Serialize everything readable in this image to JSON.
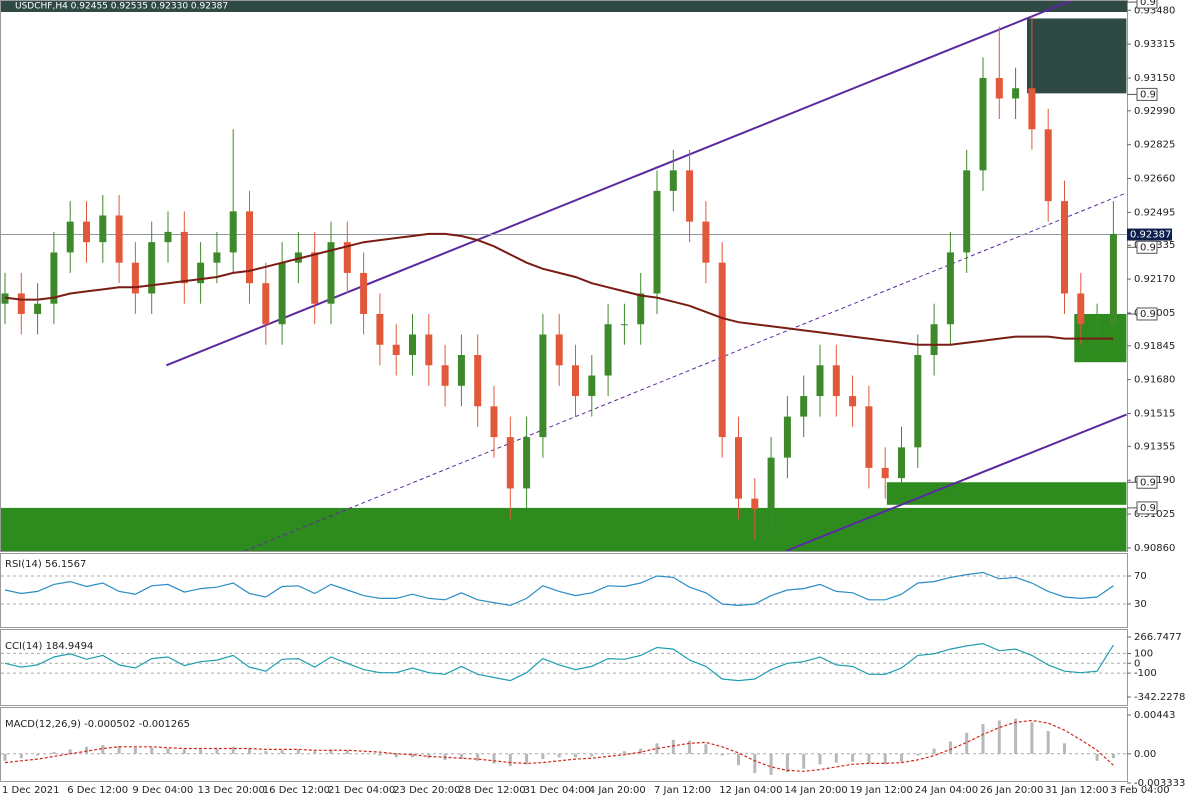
{
  "chart_data": [
    {
      "type": "candlestick",
      "title": "USDCHF,H4 0.92455 0.92535 0.92330 0.92387",
      "categories": [
        "1 Dec 2021",
        null,
        null,
        null,
        "6 Dec 12:00",
        null,
        null,
        null,
        "9 Dec 04:00",
        null,
        null,
        null,
        "13 Dec 20:00",
        null,
        null,
        null,
        "16 Dec 12:00",
        null,
        null,
        null,
        "21 Dec 04:00",
        null,
        null,
        null,
        "23 Dec 20:00",
        null,
        null,
        null,
        "28 Dec 12:00",
        null,
        null,
        null,
        "31 Dec 04:00",
        null,
        null,
        null,
        "4 Jan 20:00",
        null,
        null,
        null,
        "7 Jan 12:00",
        null,
        null,
        null,
        "12 Jan 04:00",
        null,
        null,
        null,
        "14 Jan 20:00",
        null,
        null,
        null,
        "19 Jan 12:00",
        null,
        null,
        null,
        "24 Jan 04:00",
        null,
        null,
        null,
        "26 Jan 20:00",
        null,
        null,
        null,
        "31 Jan 12:00",
        null,
        null,
        null,
        "3 Feb 04:00"
      ],
      "open": [
        0.9205,
        0.921,
        0.92,
        0.9205,
        0.923,
        0.9245,
        0.9235,
        0.9248,
        0.9225,
        0.921,
        0.9235,
        0.924,
        0.9215,
        0.9225,
        0.923,
        0.925,
        0.9215,
        0.9195,
        0.9225,
        0.923,
        0.9205,
        0.9235,
        0.922,
        0.92,
        0.9185,
        0.918,
        0.919,
        0.9175,
        0.9165,
        0.918,
        0.9155,
        0.914,
        0.9115,
        0.914,
        0.919,
        0.9175,
        0.916,
        0.917,
        0.9195,
        0.9195,
        0.921,
        0.926,
        0.927,
        0.9245,
        0.9225,
        0.914,
        0.911,
        0.9105,
        0.913,
        0.915,
        0.916,
        0.9175,
        0.916,
        0.9155,
        0.9125,
        0.912,
        0.9135,
        0.918,
        0.9195,
        0.923,
        0.927,
        0.9315,
        0.9305,
        0.931,
        0.929,
        0.9255,
        0.921,
        0.9195,
        0.9195
      ],
      "high": [
        0.922,
        0.922,
        0.9215,
        0.924,
        0.9255,
        0.9255,
        0.9258,
        0.9258,
        0.9235,
        0.9245,
        0.925,
        0.925,
        0.9235,
        0.924,
        0.929,
        0.926,
        0.9225,
        0.9235,
        0.924,
        0.924,
        0.9245,
        0.9245,
        0.923,
        0.921,
        0.9195,
        0.92,
        0.92,
        0.9185,
        0.919,
        0.919,
        0.9165,
        0.915,
        0.915,
        0.92,
        0.92,
        0.9185,
        0.918,
        0.9205,
        0.9205,
        0.922,
        0.927,
        0.928,
        0.928,
        0.9255,
        0.9235,
        0.915,
        0.912,
        0.914,
        0.916,
        0.917,
        0.9185,
        0.9185,
        0.917,
        0.9165,
        0.9135,
        0.9145,
        0.919,
        0.9205,
        0.924,
        0.928,
        0.9325,
        0.934,
        0.932,
        0.9345,
        0.93,
        0.9265,
        0.922,
        0.9205,
        0.9255
      ],
      "low": [
        0.9195,
        0.919,
        0.919,
        0.9195,
        0.922,
        0.9225,
        0.9225,
        0.9215,
        0.92,
        0.92,
        0.9225,
        0.9205,
        0.9205,
        0.9215,
        0.922,
        0.9205,
        0.9185,
        0.9185,
        0.9215,
        0.9195,
        0.9195,
        0.921,
        0.919,
        0.9175,
        0.917,
        0.917,
        0.9165,
        0.9155,
        0.9155,
        0.9145,
        0.913,
        0.91,
        0.9105,
        0.913,
        0.9165,
        0.915,
        0.915,
        0.916,
        0.9185,
        0.9185,
        0.92,
        0.925,
        0.9235,
        0.9215,
        0.913,
        0.91,
        0.909,
        0.9095,
        0.912,
        0.914,
        0.915,
        0.915,
        0.9145,
        0.9115,
        0.911,
        0.911,
        0.9125,
        0.917,
        0.9185,
        0.922,
        0.926,
        0.9295,
        0.9295,
        0.928,
        0.9245,
        0.92,
        0.9185,
        0.9185,
        0.9185
      ],
      "close": [
        0.921,
        0.92,
        0.9205,
        0.923,
        0.9245,
        0.9235,
        0.9248,
        0.9225,
        0.921,
        0.9235,
        0.924,
        0.9215,
        0.9225,
        0.923,
        0.925,
        0.9215,
        0.9195,
        0.9225,
        0.923,
        0.9205,
        0.9235,
        0.922,
        0.92,
        0.9185,
        0.918,
        0.919,
        0.9175,
        0.9165,
        0.918,
        0.9155,
        0.914,
        0.9115,
        0.914,
        0.919,
        0.9175,
        0.916,
        0.917,
        0.9195,
        0.9195,
        0.921,
        0.926,
        0.927,
        0.9245,
        0.9225,
        0.914,
        0.911,
        0.9105,
        0.913,
        0.915,
        0.916,
        0.9175,
        0.916,
        0.9155,
        0.9125,
        0.912,
        0.9135,
        0.918,
        0.9195,
        0.923,
        0.927,
        0.9315,
        0.9305,
        0.931,
        0.929,
        0.9255,
        0.921,
        0.9195,
        0.9195,
        0.9239
      ],
      "up_color": "#3e8a2a",
      "down_color": "#e2583a",
      "ma": {
        "color": "#7b1c14",
        "values": [
          0.9208,
          0.9207,
          0.9207,
          0.9208,
          0.921,
          0.9211,
          0.9212,
          0.9213,
          0.9213,
          0.9214,
          0.9215,
          0.9216,
          0.9217,
          0.9218,
          0.922,
          0.9221,
          0.9223,
          0.9225,
          0.9227,
          0.9229,
          0.9231,
          0.9233,
          0.9235,
          0.9236,
          0.9237,
          0.9238,
          0.9239,
          0.9239,
          0.9238,
          0.9236,
          0.9233,
          0.9229,
          0.9225,
          0.9222,
          0.922,
          0.9218,
          0.9215,
          0.9213,
          0.9211,
          0.9209,
          0.9208,
          0.9206,
          0.9204,
          0.9201,
          0.9198,
          0.9196,
          0.9195,
          0.9194,
          0.9193,
          0.9192,
          0.9191,
          0.919,
          0.9189,
          0.9188,
          0.9187,
          0.9186,
          0.9185,
          0.9185,
          0.9185,
          0.9186,
          0.9187,
          0.9188,
          0.9189,
          0.9189,
          0.9189,
          0.9188,
          0.9188,
          0.9188,
          0.9188
        ]
      },
      "ylim": [
        0.90845,
        0.9353
      ],
      "yticks": [
        {
          "value": 0.9086,
          "label": "0.90860"
        },
        0.91025,
        {
          "value": 0.9119,
          "label": "0.91190"
        },
        0.91355,
        0.91515,
        {
          "value": 0.9168,
          "label": "0.91680"
        },
        0.91845,
        0.92005,
        {
          "value": 0.9217,
          "label": "0.92170"
        },
        0.92335,
        0.92495,
        {
          "value": 0.9266,
          "label": "0.92660"
        },
        0.92825,
        {
          "value": 0.9299,
          "label": "0.92990"
        },
        {
          "value": 0.9315,
          "label": "0.93150"
        },
        0.93315,
        {
          "value": 0.9348,
          "label": "0.93480"
        }
      ],
      "current_price": 0.92387,
      "levels": [
        {
          "value": 0.9352,
          "label": "0.9"
        },
        {
          "value": 0.9307,
          "label": "0.9"
        },
        {
          "value": 0.92325,
          "label": "0.9"
        },
        {
          "value": 0.92,
          "label": "0.9"
        },
        {
          "value": 0.9118,
          "label": "0.9"
        },
        {
          "value": 0.91055,
          "label": "0.9"
        }
      ],
      "zones": [
        {
          "ymin": 0.93075,
          "ymax": 0.9344,
          "x0": 62.7,
          "x1": 68.8,
          "color": "#2f4a45"
        },
        {
          "ymin": 0.91765,
          "ymax": 0.92,
          "x0": 65.6,
          "x1": 68.8,
          "color": "#2e8b1e"
        },
        {
          "ymin": 0.9107,
          "ymax": 0.9118,
          "x0": 54.1,
          "x1": 68.8,
          "color": "#2e8b1e"
        },
        {
          "ymin": 0.90845,
          "ymax": 0.91055,
          "x0": -0.3,
          "x1": 68.8,
          "color": "#2e8b1e"
        }
      ],
      "trendlines": [
        {
          "x": [
            9.9,
            66.9
          ],
          "y": [
            0.9175,
            0.93575
          ],
          "color": "#5a2aa0",
          "dashed": false
        },
        {
          "x": [
            47.9,
            68.8
          ],
          "y": [
            0.90845,
            0.9151
          ],
          "color": "#5a2aa0",
          "dashed": false
        },
        {
          "x": [
            14.7,
            68.8
          ],
          "y": [
            0.90845,
            0.9259
          ],
          "color": "#5a2aa0",
          "dashed": true
        }
      ]
    },
    {
      "type": "line",
      "title": "RSI(14) 56.1567",
      "ylim": [
        0,
        100
      ],
      "yticks": [
        30,
        70
      ],
      "series": [
        {
          "color": "#2a8dc5",
          "values": [
            50,
            45,
            48,
            58,
            62,
            55,
            60,
            48,
            44,
            56,
            58,
            47,
            52,
            54,
            60,
            45,
            40,
            55,
            56,
            45,
            58,
            50,
            42,
            38,
            38,
            44,
            38,
            36,
            46,
            36,
            32,
            28,
            38,
            56,
            48,
            42,
            46,
            56,
            55,
            60,
            70,
            68,
            54,
            46,
            30,
            28,
            30,
            42,
            50,
            52,
            58,
            48,
            46,
            36,
            36,
            44,
            60,
            62,
            68,
            72,
            75,
            66,
            68,
            60,
            48,
            40,
            38,
            40,
            56
          ]
        }
      ]
    },
    {
      "type": "line",
      "title": "CCI(14) 184.9494",
      "ylim": [
        -342.2278,
        266.7477
      ],
      "yticks": [
        -342.2278,
        -100,
        0,
        100,
        266.7477
      ],
      "series": [
        {
          "color": "#1e9fb0",
          "values": [
            0,
            -40,
            -16,
            64,
            96,
            40,
            80,
            -16,
            -48,
            48,
            64,
            -24,
            16,
            32,
            80,
            -40,
            -80,
            40,
            48,
            -40,
            64,
            0,
            -64,
            -96,
            -96,
            -48,
            -96,
            -112,
            -32,
            -112,
            -144,
            -176,
            -96,
            48,
            -16,
            -64,
            -32,
            48,
            40,
            80,
            160,
            144,
            32,
            -32,
            -160,
            -176,
            -160,
            -64,
            0,
            16,
            64,
            -16,
            -32,
            -112,
            -112,
            -48,
            80,
            96,
            144,
            176,
            200,
            128,
            144,
            80,
            -16,
            -80,
            -96,
            -80,
            185
          ]
        }
      ]
    },
    {
      "type": "bar",
      "title": "MACD(12,26,9) -0.000502 -0.001265",
      "ylim": [
        -0.003333,
        0.00443
      ],
      "yticks": [
        -0.003333,
        {
          "value": 0,
          "label": "0.00"
        },
        0.00443
      ],
      "series": [
        {
          "type": "bar",
          "color": "#b8b8b8",
          "values": [
            -0.0008,
            -0.0005,
            -0.0002,
            0.0002,
            0.0005,
            0.0008,
            0.001,
            0.0009,
            0.0007,
            0.0007,
            0.0006,
            0.0005,
            0.0005,
            0.0006,
            0.0008,
            0.0006,
            0.0003,
            0.0004,
            0.0005,
            0.0003,
            0.0005,
            0.0004,
            0.0001,
            -0.0002,
            -0.0004,
            -0.0004,
            -0.0005,
            -0.0007,
            -0.0006,
            -0.0008,
            -0.0011,
            -0.0014,
            -0.0012,
            -0.0006,
            -0.0004,
            -0.0004,
            -0.0003,
            0.0,
            0.0003,
            0.0006,
            0.0012,
            0.0016,
            0.0015,
            0.0011,
            -0.0002,
            -0.0013,
            -0.0022,
            -0.0024,
            -0.0021,
            -0.0017,
            -0.0012,
            -0.001,
            -0.0009,
            -0.0011,
            -0.0012,
            -0.0009,
            -0.0002,
            0.0006,
            0.0014,
            0.0024,
            0.0034,
            0.0038,
            0.004,
            0.0036,
            0.0026,
            0.0012,
            0.0,
            -0.0008,
            -0.0005
          ]
        },
        {
          "type": "line",
          "color": "#d02a1e",
          "dashed": true,
          "values": [
            -0.001,
            -0.0008,
            -0.0006,
            -0.0003,
            0.0,
            0.0003,
            0.0006,
            0.0008,
            0.0008,
            0.0008,
            0.0007,
            0.0006,
            0.0006,
            0.0006,
            0.0006,
            0.0006,
            0.0005,
            0.0005,
            0.0005,
            0.0004,
            0.0004,
            0.0004,
            0.0003,
            0.0002,
            0.0,
            -0.0001,
            -0.0003,
            -0.0004,
            -0.0005,
            -0.0006,
            -0.0008,
            -0.001,
            -0.0011,
            -0.001,
            -0.0008,
            -0.0006,
            -0.0005,
            -0.0003,
            -0.0001,
            0.0002,
            0.0006,
            0.0009,
            0.0012,
            0.0013,
            0.0008,
            0.0001,
            -0.0008,
            -0.0015,
            -0.0019,
            -0.002,
            -0.0018,
            -0.0015,
            -0.0012,
            -0.0011,
            -0.0011,
            -0.001,
            -0.0007,
            -0.0002,
            0.0005,
            0.0013,
            0.0022,
            0.003,
            0.0036,
            0.0038,
            0.0035,
            0.0027,
            0.0016,
            0.0004,
            -0.0013
          ]
        }
      ]
    }
  ]
}
